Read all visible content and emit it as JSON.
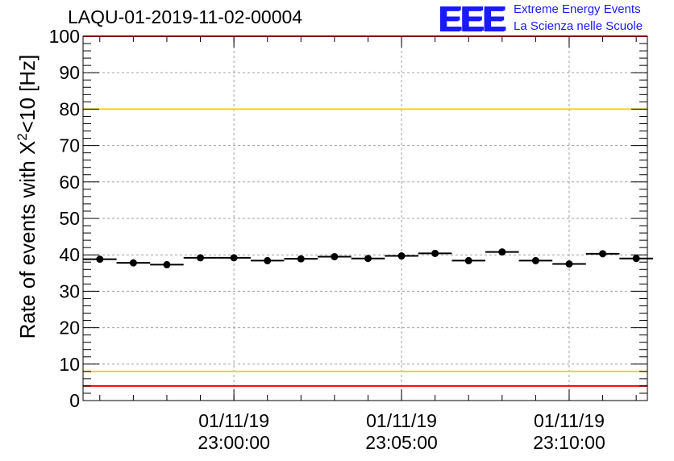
{
  "header": {
    "run_title": "LAQU-01-2019-11-02-00004",
    "logo_text": "EEE",
    "logo_line1": "Extreme Energy Events",
    "logo_line2": "La Scienza nelle Scuole"
  },
  "colors": {
    "points": "#000000",
    "red_limit": "#ff0000",
    "yellow_limit": "#f2d21c",
    "grid": "#a0a0a0",
    "logo": "#1a1aff"
  },
  "chart_data": {
    "type": "scatter",
    "title": "LAQU-01-2019-11-02-00004",
    "ylabel_prefix": "Rate of events with X",
    "ylabel_sup": "2",
    "ylabel_suffix": "<10 [Hz]",
    "xlabel": "",
    "ylim": [
      0,
      100
    ],
    "yticks": [
      "0",
      "10",
      "20",
      "30",
      "40",
      "50",
      "60",
      "70",
      "80",
      "90",
      "100"
    ],
    "xlim": [
      "01/11/19 22:55:30",
      "01/11/19 23:12:20"
    ],
    "xticks": [
      {
        "x": "01/11/19 23:00:00",
        "date": "01/11/19",
        "time": "23:00:00"
      },
      {
        "x": "01/11/19 23:05:00",
        "date": "01/11/19",
        "time": "23:05:00"
      },
      {
        "x": "01/11/19 23:10:00",
        "date": "01/11/19",
        "time": "23:10:00"
      }
    ],
    "bin_width_minutes": 1,
    "grid": true,
    "points": [
      {
        "x": "01/11/19 22:56:00",
        "y": 38.8
      },
      {
        "x": "01/11/19 22:57:00",
        "y": 37.8
      },
      {
        "x": "01/11/19 22:58:00",
        "y": 37.3
      },
      {
        "x": "01/11/19 22:59:00",
        "y": 39.2
      },
      {
        "x": "01/11/19 23:00:00",
        "y": 39.2
      },
      {
        "x": "01/11/19 23:01:00",
        "y": 38.4
      },
      {
        "x": "01/11/19 23:02:00",
        "y": 38.9
      },
      {
        "x": "01/11/19 23:03:00",
        "y": 39.5
      },
      {
        "x": "01/11/19 23:04:00",
        "y": 39.0
      },
      {
        "x": "01/11/19 23:05:00",
        "y": 39.7
      },
      {
        "x": "01/11/19 23:06:00",
        "y": 40.4
      },
      {
        "x": "01/11/19 23:07:00",
        "y": 38.4
      },
      {
        "x": "01/11/19 23:08:00",
        "y": 40.8
      },
      {
        "x": "01/11/19 23:09:00",
        "y": 38.4
      },
      {
        "x": "01/11/19 23:10:00",
        "y": 37.5
      },
      {
        "x": "01/11/19 23:11:00",
        "y": 40.3
      },
      {
        "x": "01/11/19 23:12:00",
        "y": 39.0
      }
    ],
    "reference_lines": [
      {
        "y": 100,
        "color": "red"
      },
      {
        "y": 80,
        "color": "yellow"
      },
      {
        "y": 8,
        "color": "yellow"
      },
      {
        "y": 4,
        "color": "red"
      }
    ]
  }
}
